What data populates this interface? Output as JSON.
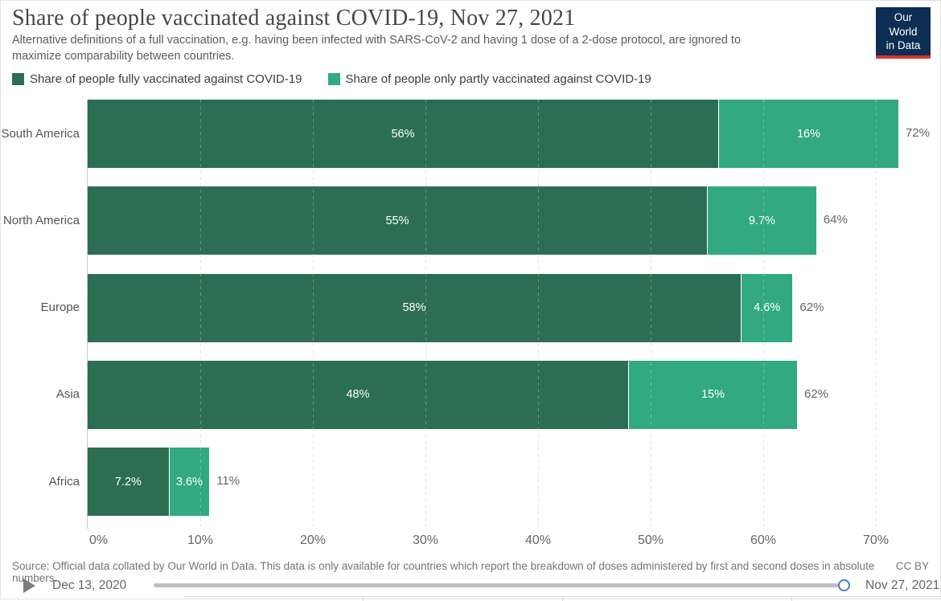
{
  "header": {
    "title": "Share of people vaccinated against COVID-19, Nov 27, 2021",
    "subtitle": "Alternative definitions of a full vaccination, e.g. having been infected with SARS-CoV-2 and having 1 dose of a 2-dose protocol, are ignored to maximize comparability between countries.",
    "logo": {
      "line1": "Our World",
      "line2": "in Data",
      "bg_color": "#0d2d52",
      "accent_color": "#d8352e"
    }
  },
  "legend": [
    {
      "label": "Share of people fully vaccinated against COVID-19",
      "color": "#2c6e54"
    },
    {
      "label": "Share of people only partly vaccinated against COVID-19",
      "color": "#32a980"
    }
  ],
  "chart_data": {
    "type": "bar",
    "orientation": "horizontal",
    "stacked": true,
    "categories": [
      "South America",
      "North America",
      "Europe",
      "Asia",
      "Africa"
    ],
    "series": [
      {
        "name": "Share of people fully vaccinated against COVID-19",
        "color": "#2c6e54",
        "values": [
          56,
          55,
          58,
          48,
          7.2
        ],
        "labels": [
          "56%",
          "55%",
          "58%",
          "48%",
          "7.2%"
        ]
      },
      {
        "name": "Share of people only partly vaccinated against COVID-19",
        "color": "#32a980",
        "values": [
          16,
          9.7,
          4.6,
          15,
          3.6
        ],
        "labels": [
          "16%",
          "9.7%",
          "4.6%",
          "15%",
          "3.6%"
        ]
      }
    ],
    "totals": [
      "72%",
      "64%",
      "62%",
      "62%",
      "11%"
    ],
    "x_ticks": [
      0,
      10,
      20,
      30,
      40,
      50,
      60,
      70
    ],
    "x_tick_labels": [
      "0%",
      "10%",
      "20%",
      "30%",
      "40%",
      "50%",
      "60%",
      "70%"
    ],
    "xlim": [
      0,
      75.7
    ],
    "grid": "dashed-vertical",
    "bar_colors": {
      "fully": "#2c6e54",
      "partly": "#32a980"
    }
  },
  "footer": {
    "source": "Source: Official data collated by Our World in Data. This data is only available for countries which report the breakdown of doses administered by first and second doses in absolute numbers.",
    "license": "CC BY"
  },
  "timeline": {
    "start_label": "Dec 13, 2020",
    "end_label": "Nov 27, 2021"
  }
}
